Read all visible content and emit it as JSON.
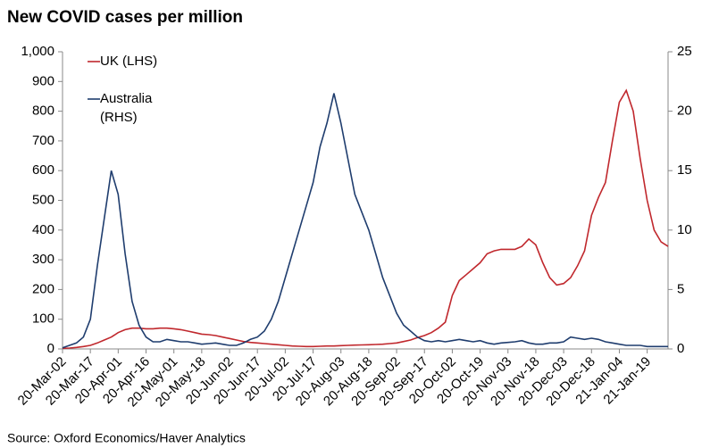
{
  "chart_data": {
    "type": "line",
    "title": "New COVID cases per million",
    "source": "Source: Oxford Economics/Haver Analytics",
    "categories": [
      "20-Mar-02",
      null,
      null,
      null,
      "20-Mar-17",
      null,
      null,
      null,
      "20-Apr-01",
      null,
      null,
      null,
      "20-Apr-16",
      null,
      null,
      null,
      "20-May-01",
      null,
      null,
      null,
      "20-May-18",
      null,
      null,
      null,
      "20-Jun-02",
      null,
      null,
      null,
      "20-Jun-17",
      null,
      null,
      null,
      "20-Jul-02",
      null,
      null,
      null,
      "20-Jul-17",
      null,
      null,
      null,
      "20-Aug-03",
      null,
      null,
      null,
      "20-Aug-18",
      null,
      null,
      null,
      "20-Sep-02",
      null,
      null,
      null,
      "20-Sep-17",
      null,
      null,
      null,
      "20-Oct-02",
      null,
      null,
      null,
      "20-Oct-19",
      null,
      null,
      null,
      "20-Nov-03",
      null,
      null,
      null,
      "20-Nov-18",
      null,
      null,
      null,
      "20-Dec-03",
      null,
      null,
      null,
      "20-Dec-18",
      null,
      null,
      null,
      "21-Jan-04",
      null,
      null,
      null,
      "21-Jan-19",
      null,
      null,
      null
    ],
    "series": [
      {
        "name": "UK (LHS)",
        "color": "#c0282d",
        "axis": "y",
        "values": [
          2,
          3,
          5,
          8,
          12,
          20,
          30,
          40,
          55,
          65,
          70,
          70,
          68,
          68,
          70,
          70,
          68,
          65,
          60,
          55,
          50,
          48,
          45,
          40,
          35,
          30,
          25,
          22,
          20,
          18,
          16,
          14,
          12,
          10,
          9,
          8,
          8,
          9,
          10,
          10,
          11,
          12,
          13,
          13.5,
          14,
          15,
          16,
          18,
          20,
          25,
          30,
          38,
          45,
          55,
          70,
          90,
          180,
          230,
          250,
          270,
          290,
          320,
          330,
          335,
          335,
          335,
          345,
          370,
          350,
          290,
          240,
          215,
          220,
          240,
          280,
          330,
          450,
          510,
          560,
          700,
          830,
          870,
          800,
          640,
          500,
          400,
          360,
          345
        ]
      },
      {
        "name": "Australia (RHS)",
        "color": "#1f3d6e",
        "axis": "y2",
        "values": [
          0.1,
          0.3,
          0.5,
          1,
          2.5,
          7,
          11,
          15,
          13,
          8,
          4,
          2,
          1,
          0.6,
          0.6,
          0.8,
          0.7,
          0.6,
          0.6,
          0.5,
          0.4,
          0.45,
          0.5,
          0.4,
          0.3,
          0.3,
          0.5,
          0.8,
          1,
          1.5,
          2.5,
          4,
          6,
          8,
          10,
          12,
          14,
          17,
          19,
          21.5,
          19,
          16,
          13,
          11.5,
          10,
          8,
          6,
          4.5,
          3,
          2,
          1.5,
          1,
          0.7,
          0.6,
          0.7,
          0.6,
          0.7,
          0.8,
          0.7,
          0.6,
          0.7,
          0.5,
          0.4,
          0.5,
          0.55,
          0.6,
          0.7,
          0.5,
          0.4,
          0.4,
          0.5,
          0.5,
          0.6,
          1,
          0.9,
          0.8,
          0.9,
          0.8,
          0.6,
          0.5,
          0.4,
          0.3,
          0.3,
          0.3,
          0.2,
          0.2,
          0.2,
          0.2
        ]
      }
    ],
    "ylim": [
      0,
      1000
    ],
    "yticks": [
      0,
      100,
      200,
      300,
      400,
      500,
      600,
      700,
      800,
      900,
      {
        "value": 1000,
        "label": "1,000"
      }
    ],
    "y2lim": [
      0,
      25
    ],
    "y2ticks": [
      0,
      5,
      10,
      15,
      20,
      25
    ],
    "grid": false
  }
}
